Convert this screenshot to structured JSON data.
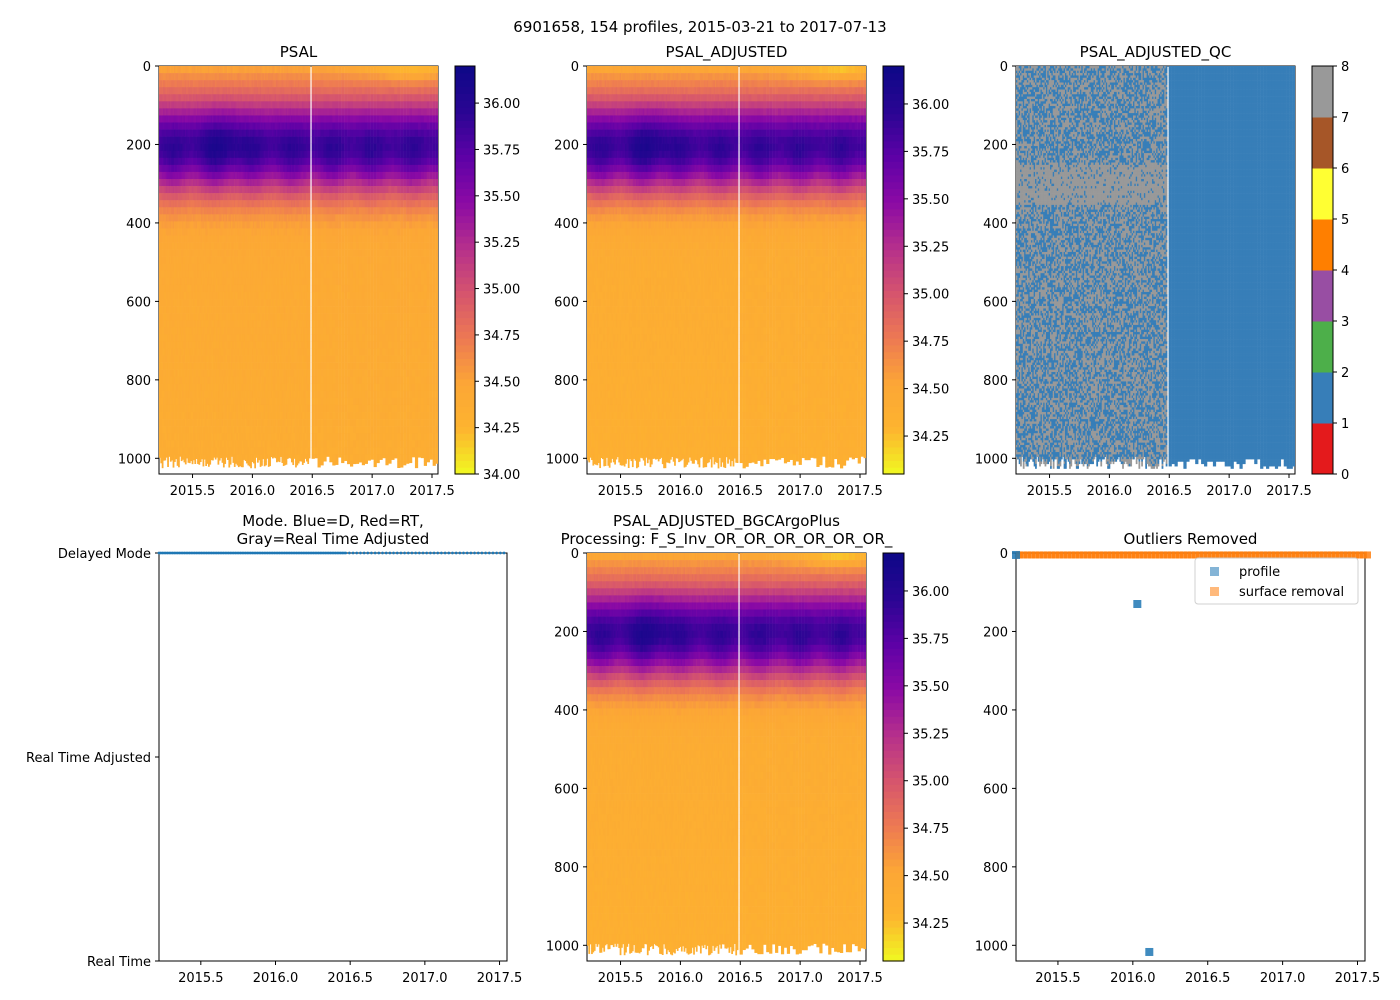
{
  "figure": {
    "suptitle": "6901658, 154 profiles, 2015-03-21 to 2017-07-13"
  },
  "colors": {
    "colormap": [
      "#f0f921",
      "#fdb42f",
      "#fca636",
      "#ed7953",
      "#d5546e",
      "#b52f8c",
      "#8b0aa5",
      "#5d01a6",
      "#2a0593",
      "#0d0887"
    ],
    "qc": [
      "#e41a1c",
      "#377eb8",
      "#4daf4a",
      "#984ea3",
      "#ff7f00",
      "#ffff33",
      "#a65628",
      "#f781bf",
      "#999999"
    ],
    "blue": "#1f77b4",
    "orange": "#ff7f0e"
  },
  "chart_data": [
    {
      "id": "psal",
      "type": "heatmap",
      "title": "PSAL",
      "xlim": [
        2015.22,
        2017.55
      ],
      "ylim": [
        1040,
        0
      ],
      "xticks": [
        2015.5,
        2016.0,
        2016.5,
        2017.0,
        2017.5
      ],
      "xtick_labels": [
        "2015.5",
        "2016.0",
        "2016.5",
        "2017.0",
        "2017.5"
      ],
      "yticks": [
        0,
        200,
        400,
        600,
        800,
        1000
      ],
      "ytick_labels": [
        "0",
        "200",
        "400",
        "600",
        "800",
        "1000"
      ],
      "dense_until": 2016.47,
      "colorbar": {
        "vmin": 34.0,
        "vmax": 36.2,
        "ticks": [
          34.0,
          34.25,
          34.5,
          34.75,
          35.0,
          35.25,
          35.5,
          35.75,
          36.0
        ],
        "tick_labels": [
          "34.00",
          "34.25",
          "34.50",
          "34.75",
          "35.00",
          "35.25",
          "35.50",
          "35.75",
          "36.00"
        ]
      }
    },
    {
      "id": "psal_adj",
      "type": "heatmap",
      "title": "PSAL_ADJUSTED",
      "xlim": [
        2015.22,
        2017.55
      ],
      "ylim": [
        1040,
        0
      ],
      "xticks": [
        2015.5,
        2016.0,
        2016.5,
        2017.0,
        2017.5
      ],
      "xtick_labels": [
        "2015.5",
        "2016.0",
        "2016.5",
        "2017.0",
        "2017.5"
      ],
      "yticks": [
        0,
        200,
        400,
        600,
        800,
        1000
      ],
      "ytick_labels": [
        "0",
        "200",
        "400",
        "600",
        "800",
        "1000"
      ],
      "dense_until": 2016.47,
      "colorbar": {
        "vmin": 34.05,
        "vmax": 36.2,
        "ticks": [
          34.25,
          34.5,
          34.75,
          35.0,
          35.25,
          35.5,
          35.75,
          36.0
        ],
        "tick_labels": [
          "34.25",
          "34.50",
          "34.75",
          "35.00",
          "35.25",
          "35.50",
          "35.75",
          "36.00"
        ]
      }
    },
    {
      "id": "psal_qc",
      "type": "heatmap",
      "title": "PSAL_ADJUSTED_QC",
      "xlim": [
        2015.22,
        2017.55
      ],
      "ylim": [
        1040,
        0
      ],
      "xticks": [
        2015.5,
        2016.0,
        2016.5,
        2017.0,
        2017.5
      ],
      "xtick_labels": [
        "2015.5",
        "2016.0",
        "2016.5",
        "2017.0",
        "2017.5"
      ],
      "yticks": [
        0,
        200,
        400,
        600,
        800,
        1000
      ],
      "ytick_labels": [
        "0",
        "200",
        "400",
        "600",
        "800",
        "1000"
      ],
      "dense_until": 2016.47,
      "qc_values": [
        1,
        8
      ],
      "qc_band_depth": [
        250,
        350
      ],
      "colorbar": {
        "vmin": 0,
        "vmax": 8,
        "ticks": [
          0,
          1,
          2,
          3,
          4,
          5,
          6,
          7,
          8
        ],
        "tick_labels": [
          "0",
          "1",
          "2",
          "3",
          "4",
          "5",
          "6",
          "7",
          "8"
        ]
      }
    },
    {
      "id": "mode",
      "type": "scatter",
      "title_lines": [
        "Mode. Blue=D, Red=RT,",
        "Gray=Real Time Adjusted"
      ],
      "xlim": [
        2015.22,
        2017.55
      ],
      "ylim": [
        0,
        2
      ],
      "xticks": [
        2015.5,
        2016.0,
        2016.5,
        2017.0,
        2017.5
      ],
      "xtick_labels": [
        "2015.5",
        "2016.0",
        "2016.5",
        "2017.0",
        "2017.5"
      ],
      "yticks": [
        0,
        1,
        2
      ],
      "ytick_labels": [
        "Real Time",
        "Real Time Adjusted",
        "Delayed Mode"
      ],
      "series": [
        {
          "name": "Delayed Mode",
          "y": 2,
          "x_range": [
            2015.22,
            2017.53
          ],
          "profiles": 154,
          "dense_until": 2016.47
        }
      ]
    },
    {
      "id": "bgc",
      "type": "heatmap",
      "title_lines": [
        "PSAL_ADJUSTED_BGCArgoPlus",
        "Processing: F_S_Inv_OR_OR_OR_OR_OR_OR_"
      ],
      "xlim": [
        2015.22,
        2017.55
      ],
      "ylim": [
        1040,
        0
      ],
      "xticks": [
        2015.5,
        2016.0,
        2016.5,
        2017.0,
        2017.5
      ],
      "xtick_labels": [
        "2015.5",
        "2016.0",
        "2016.5",
        "2017.0",
        "2017.5"
      ],
      "yticks": [
        0,
        200,
        400,
        600,
        800,
        1000
      ],
      "ytick_labels": [
        "0",
        "200",
        "400",
        "600",
        "800",
        "1000"
      ],
      "dense_until": 2016.47,
      "colorbar": {
        "vmin": 34.05,
        "vmax": 36.2,
        "ticks": [
          34.25,
          34.5,
          34.75,
          35.0,
          35.25,
          35.5,
          35.75,
          36.0
        ],
        "tick_labels": [
          "34.25",
          "34.50",
          "34.75",
          "35.00",
          "35.25",
          "35.50",
          "35.75",
          "36.00"
        ]
      }
    },
    {
      "id": "outliers",
      "type": "scatter",
      "title": "Outliers Removed",
      "xlim": [
        2015.22,
        2017.55
      ],
      "ylim": [
        1040,
        0
      ],
      "xticks": [
        2015.5,
        2016.0,
        2016.5,
        2017.0,
        2017.5
      ],
      "xtick_labels": [
        "2015.5",
        "2016.0",
        "2016.5",
        "2017.0",
        "2017.5"
      ],
      "yticks": [
        0,
        200,
        400,
        600,
        800,
        1000
      ],
      "ytick_labels": [
        "0",
        "200",
        "400",
        "600",
        "800",
        "1000"
      ],
      "legend": {
        "position": "upper right",
        "entries": [
          "profile",
          "surface removal"
        ]
      },
      "series": [
        {
          "name": "profile",
          "color": "blue",
          "points": [
            [
              2015.22,
              5
            ],
            [
              2016.03,
              130
            ],
            [
              2016.11,
              1017
            ]
          ]
        },
        {
          "name": "surface removal",
          "color": "orange",
          "x_range": [
            2015.22,
            2017.55
          ],
          "depth": 5
        }
      ]
    }
  ]
}
